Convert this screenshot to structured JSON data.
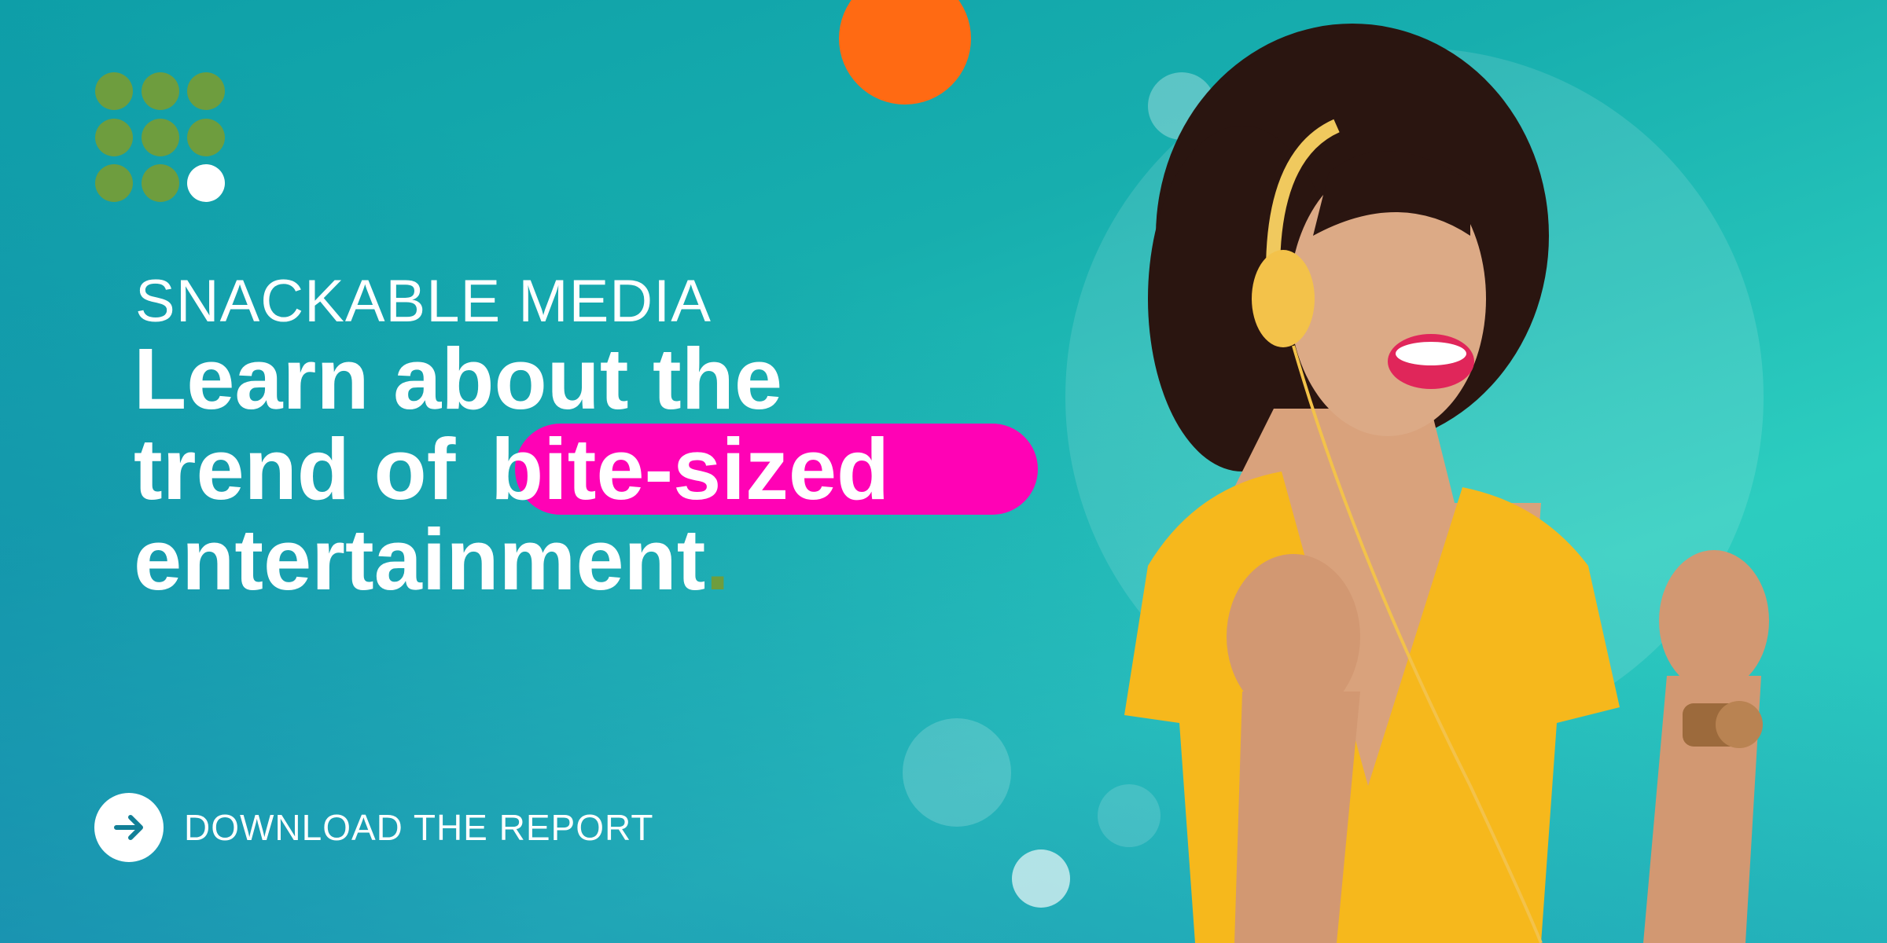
{
  "brand": {
    "logo_icon": "dot-grid-logo",
    "accent_green": "#6e9d3e",
    "accent_pink": "#ff02b5",
    "accent_orange": "#ff6a13"
  },
  "hero": {
    "eyebrow": "SNACKABLE MEDIA",
    "headline_line1": "Learn about the",
    "headline_line2_prefix": "trend of ",
    "headline_highlight": "bite-sized",
    "headline_line3": "entertainment",
    "headline_period": "."
  },
  "cta": {
    "label": "DOWNLOAD THE REPORT",
    "icon": "arrow-right-icon"
  },
  "image": {
    "subject": "woman-with-headphones-photo"
  }
}
